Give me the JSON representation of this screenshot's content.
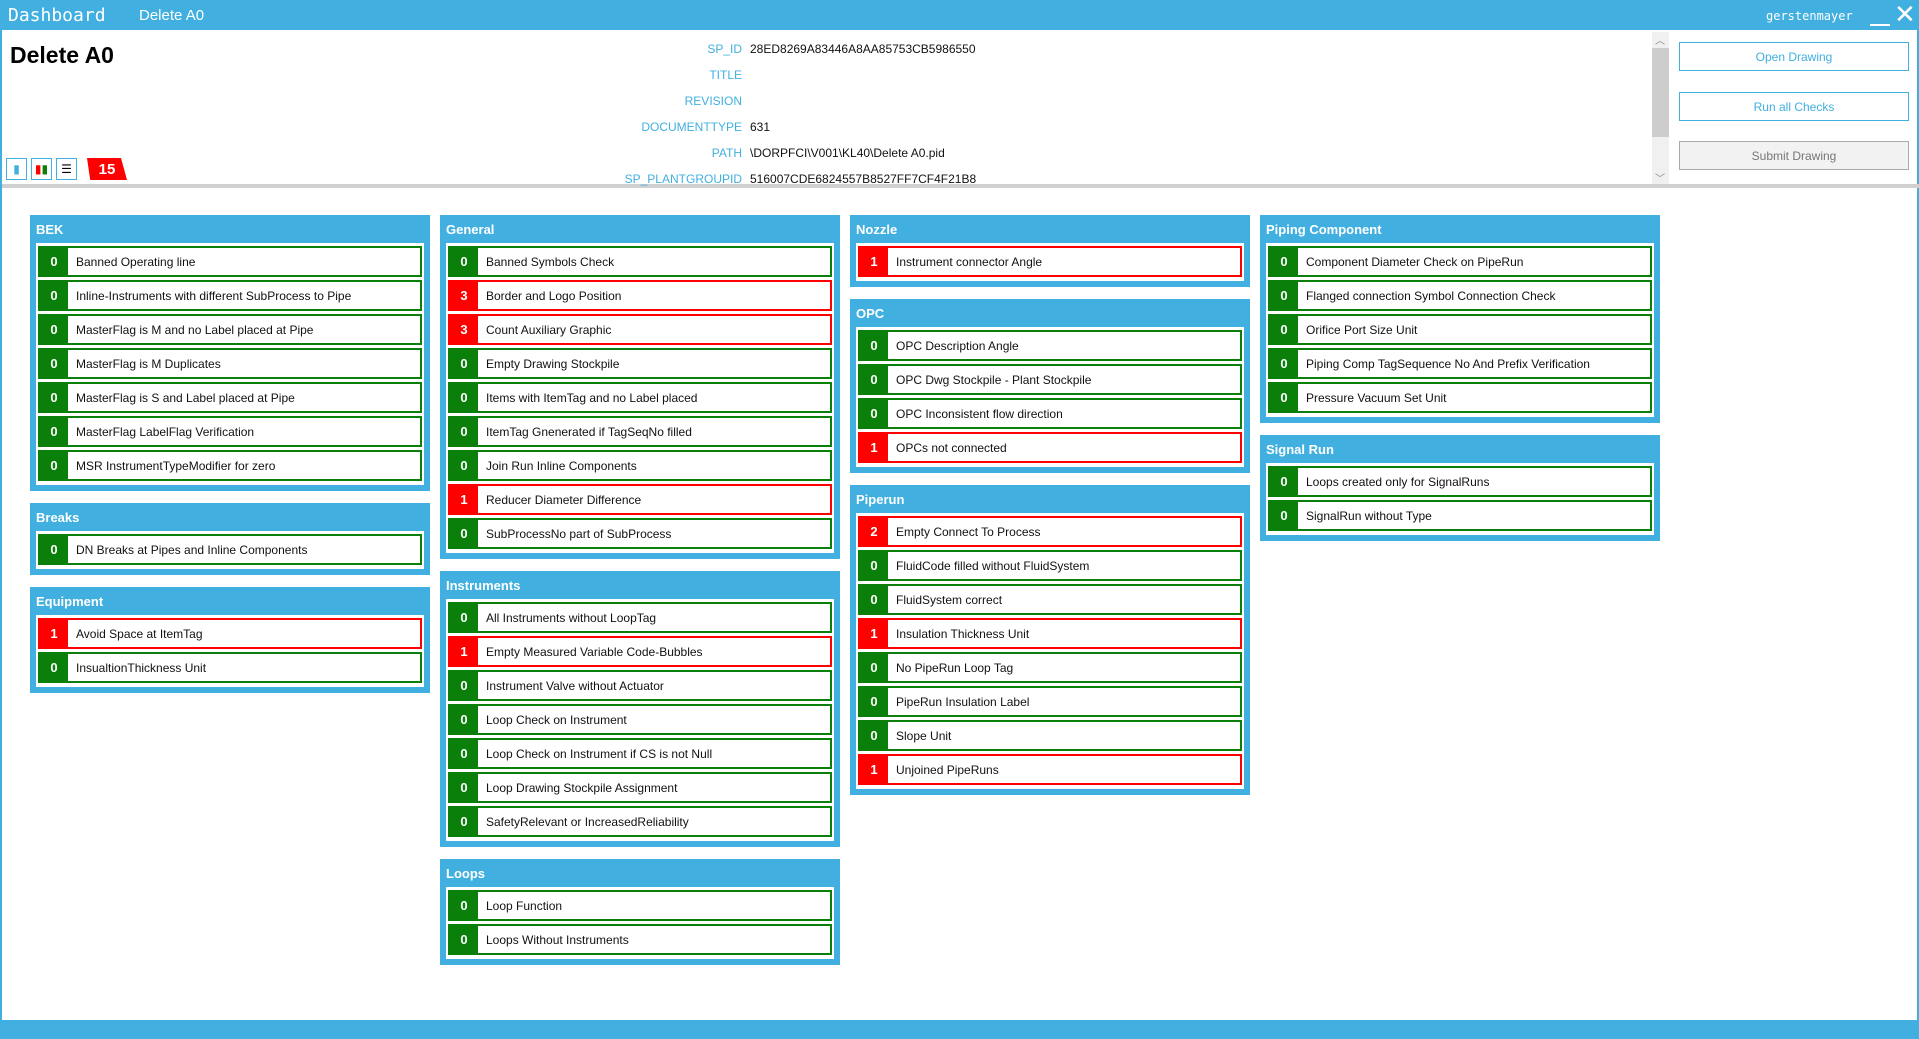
{
  "titlebar": {
    "app": "Dashboard",
    "document": "Delete A0",
    "user": "gerstenmayer"
  },
  "header": {
    "title": "Delete A0",
    "error_count": "15",
    "properties": [
      {
        "key": "SP_ID",
        "value": "28ED8269A83446A8AA85753CB5986550"
      },
      {
        "key": "TITLE",
        "value": ""
      },
      {
        "key": "REVISION",
        "value": ""
      },
      {
        "key": "DOCUMENTTYPE",
        "value": "631"
      },
      {
        "key": "PATH",
        "value": "\\DORPFCI\\V001\\KL40\\Delete A0.pid"
      },
      {
        "key": "SP_PLANTGROUPID",
        "value": "516007CDE6824557B8527FF7CF4F21B8"
      }
    ]
  },
  "actions": {
    "open": "Open Drawing",
    "run": "Run all Checks",
    "submit": "Submit Drawing"
  },
  "colors": {
    "accent": "#41b0e0",
    "ok": "#0a7f0a",
    "fail": "#ff0000"
  },
  "columns": [
    [
      {
        "name": "BEK",
        "items": [
          [
            "0",
            "Banned Operating line"
          ],
          [
            "0",
            "Inline-Instruments with different SubProcess to Pipe"
          ],
          [
            "0",
            "MasterFlag is M and no Label placed at Pipe"
          ],
          [
            "0",
            "MasterFlag is M Duplicates"
          ],
          [
            "0",
            "MasterFlag is S and Label placed  at Pipe"
          ],
          [
            "0",
            "MasterFlag LabelFlag Verification"
          ],
          [
            "0",
            "MSR InstrumentTypeModifier for zero"
          ]
        ]
      },
      {
        "name": "Breaks",
        "items": [
          [
            "0",
            "DN Breaks at Pipes and Inline Components"
          ]
        ]
      },
      {
        "name": "Equipment",
        "items": [
          [
            "1",
            "Avoid Space at ItemTag"
          ],
          [
            "0",
            "InsualtionThickness Unit"
          ]
        ]
      }
    ],
    [
      {
        "name": "General",
        "items": [
          [
            "0",
            "Banned Symbols Check"
          ],
          [
            "3",
            "Border and Logo Position"
          ],
          [
            "3",
            "Count Auxiliary Graphic"
          ],
          [
            "0",
            "Empty Drawing Stockpile"
          ],
          [
            "0",
            "Items with ItemTag and no Label placed"
          ],
          [
            "0",
            "ItemTag Gnenerated if TagSeqNo filled"
          ],
          [
            "0",
            "Join Run Inline Components"
          ],
          [
            "1",
            "Reducer Diameter Difference"
          ],
          [
            "0",
            "SubProcessNo part of SubProcess"
          ]
        ]
      },
      {
        "name": "Instruments",
        "items": [
          [
            "0",
            "All Instruments without LoopTag"
          ],
          [
            "1",
            "Empty Measured Variable Code-Bubbles"
          ],
          [
            "0",
            "Instrument Valve without Actuator"
          ],
          [
            "0",
            "Loop Check on Instrument"
          ],
          [
            "0",
            "Loop Check on Instrument if CS is not Null"
          ],
          [
            "0",
            "Loop Drawing Stockpile Assignment"
          ],
          [
            "0",
            "SafetyRelevant or IncreasedReliability"
          ]
        ]
      },
      {
        "name": "Loops",
        "items": [
          [
            "0",
            "Loop Function"
          ],
          [
            "0",
            "Loops Without Instruments"
          ]
        ]
      }
    ],
    [
      {
        "name": "Nozzle",
        "items": [
          [
            "1",
            "Instrument connector Angle"
          ]
        ]
      },
      {
        "name": "OPC",
        "items": [
          [
            "0",
            "OPC Description Angle"
          ],
          [
            "0",
            "OPC Dwg Stockpile - Plant Stockpile"
          ],
          [
            "0",
            "OPC Inconsistent flow direction"
          ],
          [
            "1",
            "OPCs not connected"
          ]
        ]
      },
      {
        "name": "Piperun",
        "items": [
          [
            "2",
            "Empty Connect To Process"
          ],
          [
            "0",
            "FluidCode filled without FluidSystem"
          ],
          [
            "0",
            "FluidSystem correct"
          ],
          [
            "1",
            "Insulation Thickness Unit"
          ],
          [
            "0",
            "No PipeRun Loop Tag"
          ],
          [
            "0",
            "PipeRun Insulation Label"
          ],
          [
            "0",
            "Slope Unit"
          ],
          [
            "1",
            "Unjoined PipeRuns"
          ]
        ]
      }
    ],
    [
      {
        "name": "Piping Component",
        "items": [
          [
            "0",
            "Component Diameter Check on PipeRun"
          ],
          [
            "0",
            "Flanged connection Symbol Connection Check"
          ],
          [
            "0",
            "Orifice Port Size Unit"
          ],
          [
            "0",
            "Piping Comp TagSequence No And Prefix Verification"
          ],
          [
            "0",
            "Pressure Vacuum Set Unit"
          ]
        ]
      },
      {
        "name": "Signal Run",
        "items": [
          [
            "0",
            "Loops created only for SignalRuns"
          ],
          [
            "0",
            "SignalRun without Type"
          ]
        ]
      }
    ]
  ]
}
